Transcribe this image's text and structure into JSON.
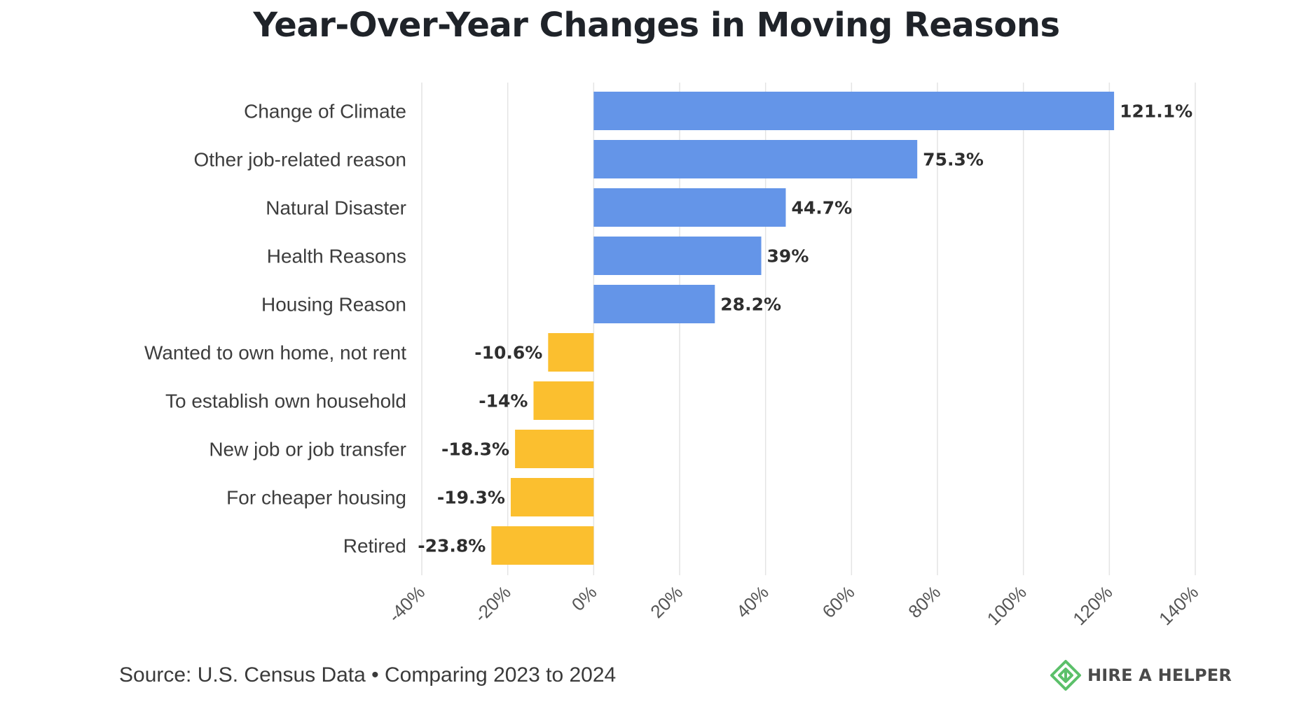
{
  "title": "Year-Over-Year Changes in Moving Reasons",
  "source": "Source: U.S. Census Data • Comparing 2023 to 2024",
  "logo": {
    "text": "HIRE A HELPER",
    "icon": "hire-a-helper-logo-icon",
    "color": "#5cc06a"
  },
  "colors": {
    "positive": "#6495e8",
    "negative": "#fbbf2f"
  },
  "chart_data": {
    "type": "bar",
    "orientation": "horizontal",
    "title": "Year-Over-Year Changes in Moving Reasons",
    "categories": [
      "Change of Climate",
      "Other job-related reason",
      "Natural Disaster",
      "Health Reasons",
      "Housing Reason",
      "Wanted to own home, not rent",
      "To establish own household",
      "New job or job transfer",
      "For cheaper housing",
      "Retired"
    ],
    "values": [
      121.1,
      75.3,
      44.7,
      39,
      28.2,
      -10.6,
      -14,
      -18.3,
      -19.3,
      -23.8
    ],
    "value_labels": [
      "121.1%",
      "75.3%",
      "44.7%",
      "39%",
      "28.2%",
      "-10.6%",
      "-14%",
      "-18.3%",
      "-19.3%",
      "-23.8%"
    ],
    "xlim": [
      -40,
      140
    ],
    "xticks": [
      -40,
      -20,
      0,
      20,
      40,
      60,
      80,
      100,
      120,
      140
    ],
    "xtick_labels": [
      "-40%",
      "-20%",
      "0%",
      "20%",
      "40%",
      "60%",
      "80%",
      "100%",
      "120%",
      "140%"
    ],
    "grid": true,
    "legend": "none"
  }
}
